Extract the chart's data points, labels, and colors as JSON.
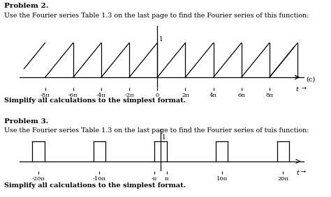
{
  "bg_color": "#ffffff",
  "prob2_title": "Problem 2.",
  "prob2_desc": "Use the Fourier series Table 1.3 on the last page to find the Fourier series of this function:",
  "prob2_simplify": "Simplify all calculations to the simplest format.",
  "prob3_title": "Problem 3.",
  "prob3_desc": "Use the Fourier series Table 1.3 on the last page to find the Fourier series of tuis function:",
  "prob3_simplify": "Simplify all calculations to the simplest format.",
  "sawtooth_label_c": "(c)",
  "sawtooth_xtick_labels": [
    "-8π",
    "-6π",
    "-4π",
    "-2π",
    "0",
    "2π",
    "4π",
    "6π",
    "8π"
  ],
  "sawtooth_xtick_mults": [
    -8,
    -6,
    -4,
    -2,
    0,
    2,
    4,
    6,
    8
  ],
  "square_xtick_labels": [
    "-20π",
    "-10π",
    "-π",
    "π",
    "10π",
    "20π"
  ],
  "square_xtick_mults": [
    -20,
    -10,
    -1,
    1,
    10,
    20
  ],
  "pi": 3.14159265358979
}
